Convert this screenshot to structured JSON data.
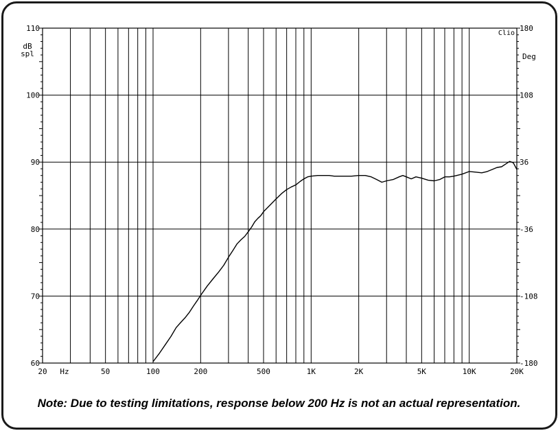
{
  "chart_data": {
    "type": "line",
    "brand": "Clio",
    "x_scale": "log",
    "xlim": [
      20,
      20000
    ],
    "ylim": [
      60,
      110
    ],
    "y2lim": [
      -180,
      180
    ],
    "x_unit_label": "Hz",
    "y_unit_label": [
      "dB",
      "spl"
    ],
    "y2_unit_label": "Deg",
    "x_ticks": [
      {
        "value": 20,
        "label": "20"
      },
      {
        "value": 50,
        "label": "50"
      },
      {
        "value": 100,
        "label": "100"
      },
      {
        "value": 200,
        "label": "200"
      },
      {
        "value": 500,
        "label": "500"
      },
      {
        "value": 1000,
        "label": "1K"
      },
      {
        "value": 2000,
        "label": "2K"
      },
      {
        "value": 5000,
        "label": "5K"
      },
      {
        "value": 10000,
        "label": "10K"
      },
      {
        "value": 20000,
        "label": "20K"
      }
    ],
    "y_ticks": [
      {
        "value": 110,
        "label": "110"
      },
      {
        "value": 100,
        "label": "100"
      },
      {
        "value": 90,
        "label": "90"
      },
      {
        "value": 80,
        "label": "80"
      },
      {
        "value": 70,
        "label": "70"
      },
      {
        "value": 60,
        "label": "60"
      }
    ],
    "y2_ticks": [
      {
        "value": 180,
        "label": "180"
      },
      {
        "value": 108,
        "label": "108"
      },
      {
        "value": 36,
        "label": "36"
      },
      {
        "value": -36,
        "label": "-36"
      },
      {
        "value": -108,
        "label": "-108"
      },
      {
        "value": -180,
        "label": "-180"
      }
    ],
    "grid": true,
    "series": [
      {
        "color": "#000000",
        "points": [
          [
            100,
            60.2
          ],
          [
            110,
            61.5
          ],
          [
            120,
            62.8
          ],
          [
            130,
            64.0
          ],
          [
            140,
            65.3
          ],
          [
            150,
            66.1
          ],
          [
            160,
            66.8
          ],
          [
            170,
            67.6
          ],
          [
            180,
            68.5
          ],
          [
            190,
            69.3
          ],
          [
            200,
            70.1
          ],
          [
            220,
            71.5
          ],
          [
            240,
            72.6
          ],
          [
            260,
            73.6
          ],
          [
            280,
            74.6
          ],
          [
            300,
            75.8
          ],
          [
            320,
            76.8
          ],
          [
            340,
            77.8
          ],
          [
            360,
            78.4
          ],
          [
            380,
            78.9
          ],
          [
            400,
            79.6
          ],
          [
            420,
            80.3
          ],
          [
            440,
            81.1
          ],
          [
            460,
            81.6
          ],
          [
            480,
            82.0
          ],
          [
            500,
            82.6
          ],
          [
            550,
            83.6
          ],
          [
            600,
            84.5
          ],
          [
            650,
            85.3
          ],
          [
            700,
            85.9
          ],
          [
            750,
            86.3
          ],
          [
            800,
            86.6
          ],
          [
            850,
            87.1
          ],
          [
            900,
            87.5
          ],
          [
            950,
            87.8
          ],
          [
            1000,
            87.9
          ],
          [
            1100,
            88.0
          ],
          [
            1200,
            88.0
          ],
          [
            1300,
            88.0
          ],
          [
            1400,
            87.9
          ],
          [
            1500,
            87.9
          ],
          [
            1600,
            87.9
          ],
          [
            1700,
            87.9
          ],
          [
            1800,
            87.9
          ],
          [
            2000,
            88.0
          ],
          [
            2200,
            88.0
          ],
          [
            2400,
            87.8
          ],
          [
            2600,
            87.4
          ],
          [
            2800,
            87.0
          ],
          [
            3000,
            87.2
          ],
          [
            3300,
            87.4
          ],
          [
            3600,
            87.8
          ],
          [
            3800,
            88.0
          ],
          [
            4000,
            87.8
          ],
          [
            4300,
            87.5
          ],
          [
            4600,
            87.8
          ],
          [
            5000,
            87.6
          ],
          [
            5500,
            87.3
          ],
          [
            6000,
            87.2
          ],
          [
            6500,
            87.4
          ],
          [
            7000,
            87.8
          ],
          [
            7500,
            87.8
          ],
          [
            8000,
            87.9
          ],
          [
            9000,
            88.2
          ],
          [
            10000,
            88.6
          ],
          [
            11000,
            88.5
          ],
          [
            12000,
            88.4
          ],
          [
            13000,
            88.6
          ],
          [
            14000,
            88.9
          ],
          [
            15000,
            89.2
          ],
          [
            16000,
            89.3
          ],
          [
            17000,
            89.7
          ],
          [
            18000,
            90.1
          ],
          [
            19000,
            89.9
          ],
          [
            20000,
            88.9
          ]
        ]
      }
    ]
  },
  "note": "Note:  Due to testing limitations, response below 200 Hz is not an actual representation."
}
